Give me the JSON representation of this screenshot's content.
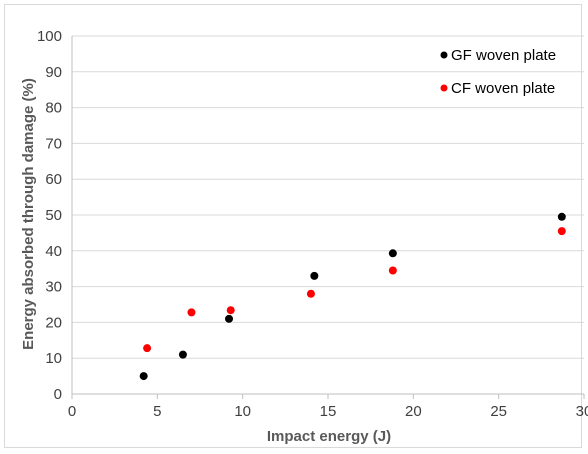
{
  "chart_data": {
    "type": "scatter",
    "xlabel": "Impact energy (J)",
    "ylabel": "Energy absorbed through damage (%)",
    "xlim": [
      0,
      30
    ],
    "ylim": [
      0,
      100
    ],
    "xticks": [
      "0",
      "5",
      "10",
      "15",
      "20",
      "25",
      "30"
    ],
    "yticks": [
      "0",
      "10",
      "20",
      "30",
      "40",
      "50",
      "60",
      "70",
      "80",
      "90",
      "100"
    ],
    "grid": true,
    "legend_position": "top-right",
    "series": [
      {
        "name": "GF woven plate",
        "color": "#000000",
        "points": [
          [
            4.2,
            5
          ],
          [
            6.5,
            11
          ],
          [
            9.2,
            21
          ],
          [
            14.2,
            33
          ],
          [
            18.8,
            39.3
          ],
          [
            28.7,
            49.5
          ]
        ]
      },
      {
        "name": "CF woven plate",
        "color": "#ff0000",
        "points": [
          [
            4.4,
            12.8
          ],
          [
            7.0,
            22.8
          ],
          [
            9.3,
            23.4
          ],
          [
            14.0,
            28
          ],
          [
            18.8,
            34.5
          ],
          [
            28.7,
            45.5
          ]
        ]
      }
    ]
  }
}
